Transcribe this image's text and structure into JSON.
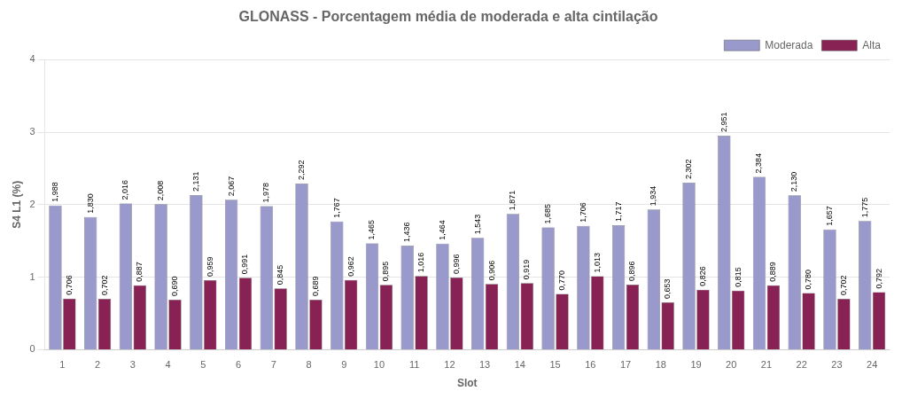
{
  "chart_data": {
    "type": "bar",
    "title": "GLONASS - Porcentagem média de moderada e alta cintilação",
    "xlabel": "Slot",
    "ylabel": "S4 L1 (%)",
    "categories": [
      "1",
      "2",
      "3",
      "4",
      "5",
      "6",
      "7",
      "8",
      "9",
      "10",
      "11",
      "12",
      "13",
      "14",
      "15",
      "16",
      "17",
      "18",
      "19",
      "20",
      "21",
      "22",
      "23",
      "24"
    ],
    "series": [
      {
        "name": "Moderada",
        "color": "#9999CC",
        "values": [
          1.988,
          1.83,
          2.016,
          2.008,
          2.131,
          2.067,
          1.978,
          2.292,
          1.767,
          1.465,
          1.436,
          1.464,
          1.543,
          1.871,
          1.685,
          1.706,
          1.717,
          1.934,
          2.302,
          2.951,
          2.384,
          2.13,
          1.657,
          1.775
        ],
        "value_labels": [
          "1,988",
          "1,830",
          "2,016",
          "2,008",
          "2,131",
          "2,067",
          "1,978",
          "2,292",
          "1,767",
          "1,465",
          "1,436",
          "1,464",
          "1,543",
          "1,871",
          "1,685",
          "1,706",
          "1,717",
          "1,934",
          "2,302",
          "2,951",
          "2,384",
          "2,130",
          "1,657",
          "1,775"
        ]
      },
      {
        "name": "Alta",
        "color": "#882255",
        "values": [
          0.706,
          0.702,
          0.887,
          0.69,
          0.959,
          0.991,
          0.845,
          0.689,
          0.962,
          0.895,
          1.016,
          0.996,
          0.906,
          0.919,
          0.77,
          1.013,
          0.896,
          0.653,
          0.826,
          0.815,
          0.889,
          0.78,
          0.702,
          0.792
        ],
        "value_labels": [
          "0,706",
          "0,702",
          "0,887",
          "0,690",
          "0,959",
          "0,991",
          "0,845",
          "0,689",
          "0,962",
          "0,895",
          "1,016",
          "0,996",
          "0,906",
          "0,919",
          "0,770",
          "1,013",
          "0,896",
          "0,653",
          "0,826",
          "0,815",
          "0,889",
          "0,780",
          "0,702",
          "0,792"
        ]
      }
    ],
    "ylim": [
      0,
      4
    ],
    "yticks": [
      0,
      1,
      2,
      3,
      4
    ],
    "grid": true,
    "legend": "upper right",
    "data_labels": true
  }
}
